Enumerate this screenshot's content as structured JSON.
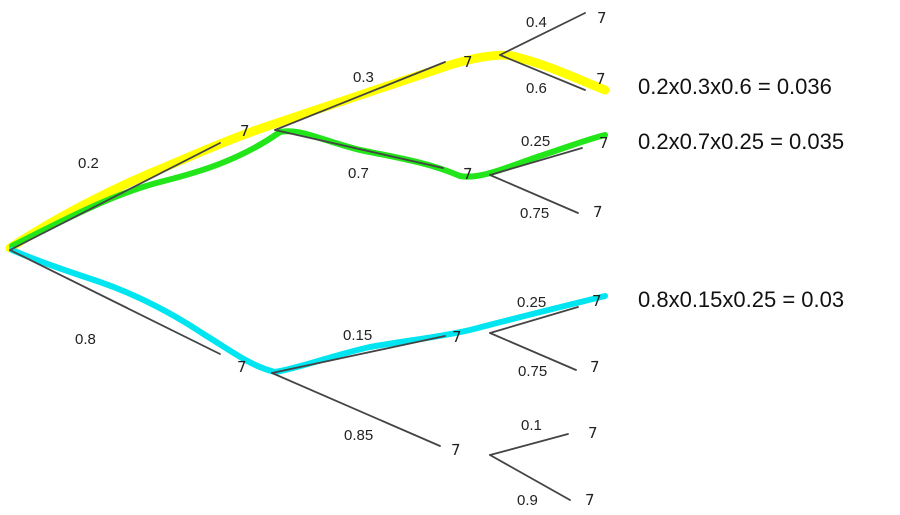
{
  "tree": {
    "nodes": {
      "n1": "7",
      "n1_bar": "7̄",
      "n2": "7",
      "n2_bar": "7̄",
      "n3": "7",
      "n3_bar": "7̄",
      "n4": "7̄",
      "l_a1": "7",
      "l_a2": "7̄",
      "l_b1": "7",
      "l_b2": "7̄",
      "l_c1": "7",
      "l_c2": "7̄",
      "l_d1": "7",
      "l_d2": "7̄"
    },
    "probabilities": {
      "root_to_7": "0.2",
      "root_to_not7": "0.8",
      "a_to_7": "0.3",
      "a_to_not7": "0.7",
      "b_to_7": "0.15",
      "b_to_not7": "0.85",
      "aa_to_7": "0.4",
      "aa_to_not7": "0.6",
      "ab_to_7": "0.25",
      "ab_to_not7": "0.75",
      "ba_to_7": "0.25",
      "ba_to_not7": "0.75",
      "bb_to_7": "0.1",
      "bb_to_not7": "0.9"
    },
    "calculations": {
      "yellow_path": "0.2x0.3x0.6 = 0.036",
      "green_path": "0.2x0.7x0.25 = 0.035",
      "cyan_path": "0.8x0.15x0.25 = 0.03"
    },
    "highlight_colors": {
      "yellow": "#ffff00",
      "green": "#22e51a",
      "cyan": "#00e5f0",
      "branch": "#444444"
    }
  }
}
